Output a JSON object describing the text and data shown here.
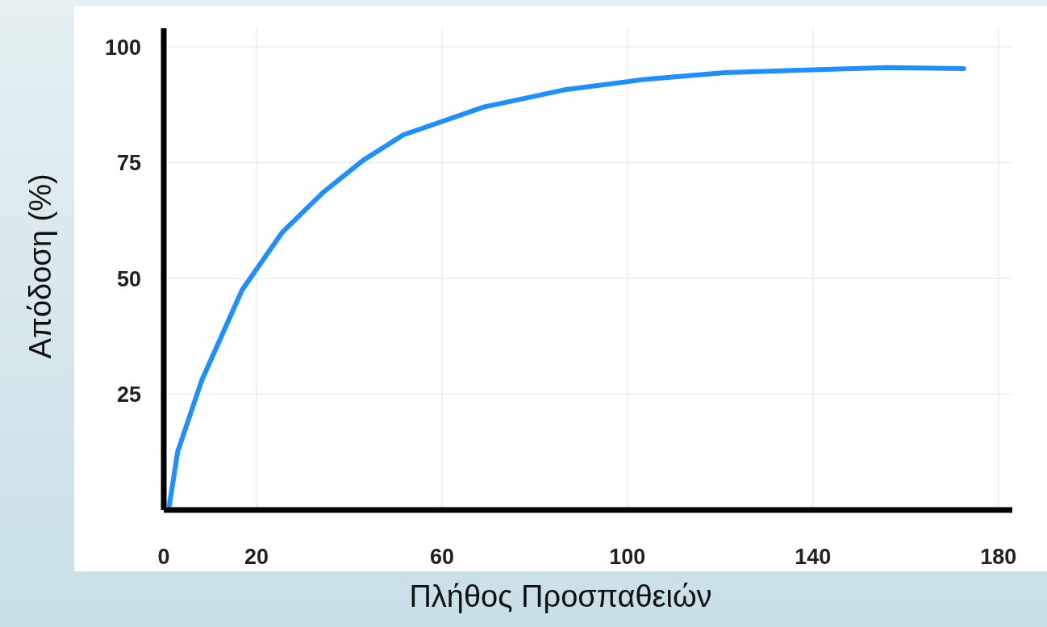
{
  "chart_data": {
    "type": "line",
    "xlabel": "Πλήθος Προσπαθειών",
    "ylabel": "Απόδοση (%)",
    "x": [
      1.2,
      3,
      8.2,
      16.9,
      25.6,
      34.3,
      43,
      51.7,
      69,
      86.4,
      104,
      121,
      138.6,
      156,
      172.5
    ],
    "series": [
      {
        "color": "#1e8fff",
        "values": [
          1,
          12.6,
          28,
          47.5,
          60,
          68.5,
          75.5,
          81,
          87,
          90.7,
          93,
          94.4,
          95,
          95.5,
          95.3
        ]
      }
    ],
    "xlim": [
      0,
      183
    ],
    "xticks": [
      0,
      20,
      60,
      100,
      140,
      180
    ],
    "ylim": [
      0,
      104
    ],
    "yticks": [
      25,
      50,
      75,
      100
    ],
    "grid": true,
    "marker": "none",
    "line_style": "solid"
  }
}
